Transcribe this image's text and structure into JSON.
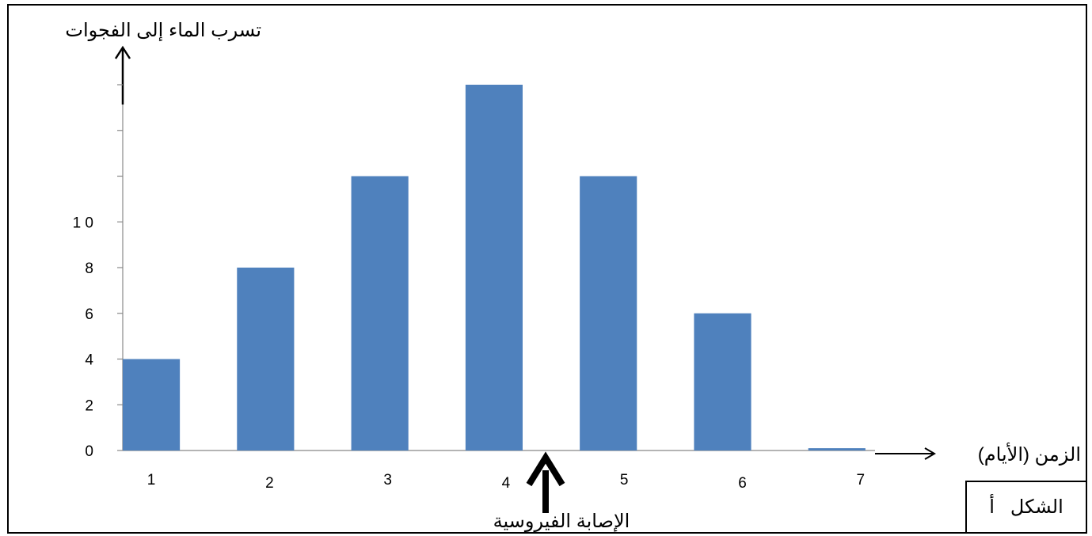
{
  "chart_data": {
    "type": "bar",
    "categories": [
      "1",
      "2",
      "3",
      "4",
      "5",
      "6",
      "7"
    ],
    "values": [
      4,
      8,
      12,
      16,
      12,
      6,
      0.1
    ],
    "title": "",
    "ylabel": "تسرب الماء إلى الفجوات",
    "xlabel": "الزمن (الأيام)",
    "ylim": [
      0,
      16
    ],
    "y_tick_labels": [
      "0",
      "2",
      "4",
      "6",
      "8",
      "1 0"
    ],
    "grid": false,
    "bar_color": "#4f81bd",
    "annotation": "الإصابة الفيروسية",
    "figure_label": "الشكل   أ"
  }
}
